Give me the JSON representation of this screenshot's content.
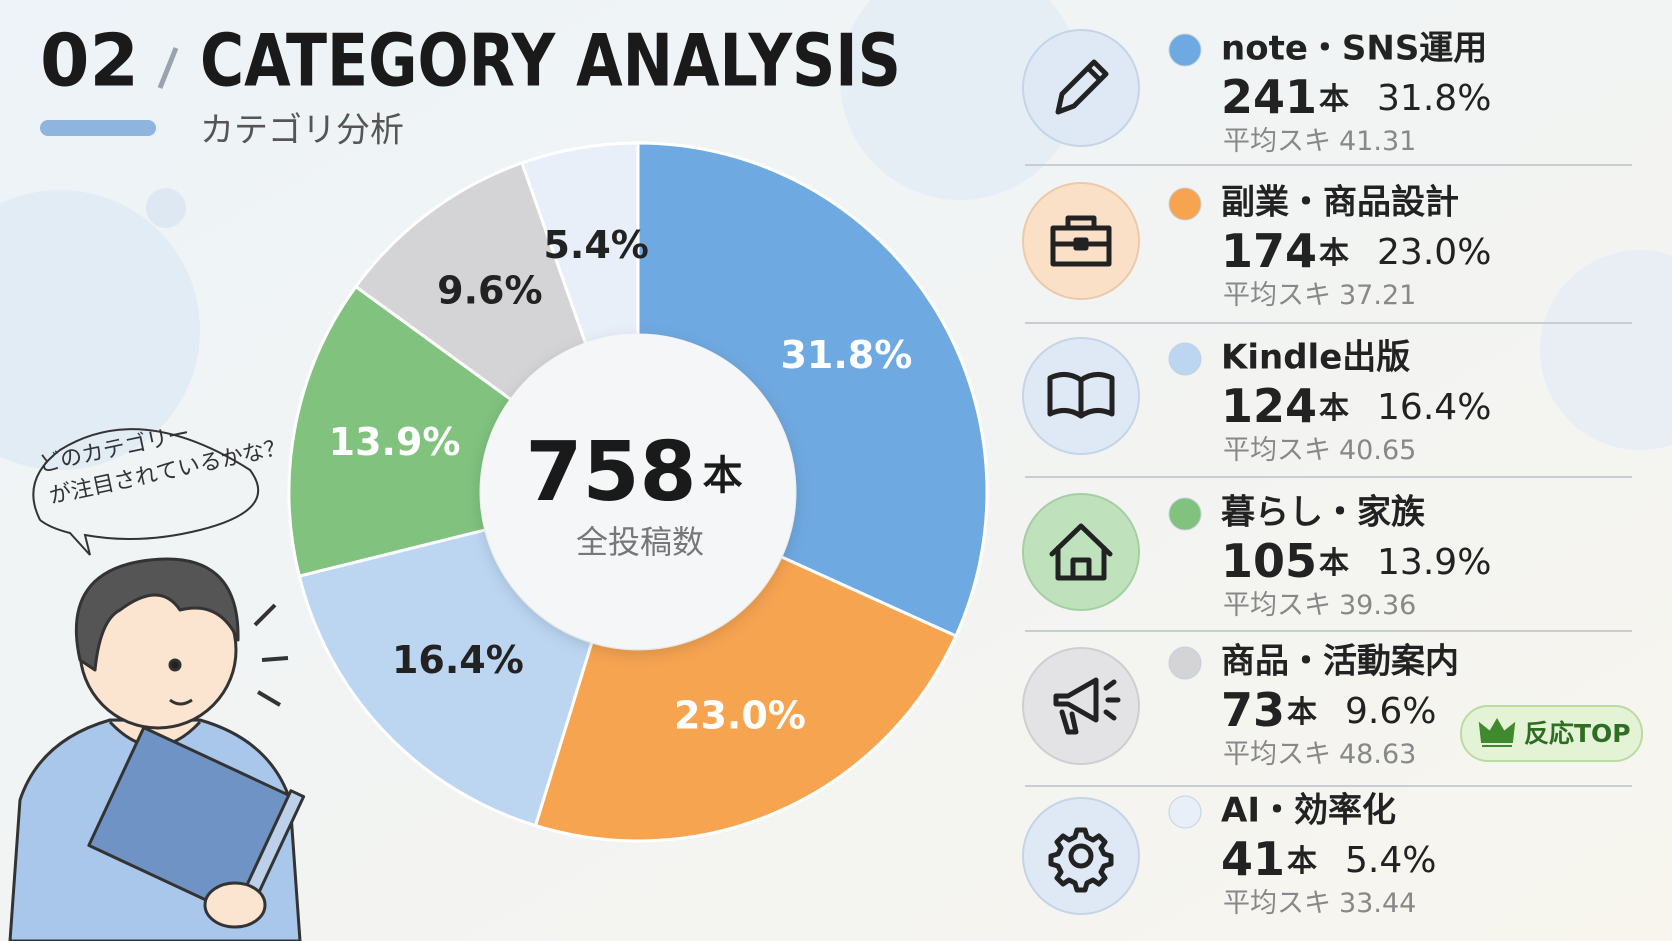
{
  "chart_data": {
    "type": "pie",
    "section": "02",
    "title": "CATEGORY ANALYSIS",
    "subtitle": "カテゴリ分析",
    "categories": [
      "note・SNS運用",
      "副業・商品設計",
      "Kindle出版",
      "暮らし・家族",
      "商品・活動案内",
      "AI・効率化"
    ],
    "values": [
      31.8,
      23.0,
      16.4,
      13.9,
      9.6,
      5.4
    ],
    "value_labels": [
      "31.8%",
      "23.0%",
      "16.4%",
      "13.9%",
      "9.6%",
      "5.4%"
    ],
    "colors": [
      "#6fa9e1",
      "#f7a451",
      "#bcd6f2",
      "#80c27e",
      "#d4d4d6",
      "#e9eff9"
    ],
    "counts": [
      241,
      174,
      124,
      105,
      73,
      41
    ],
    "unit": "本",
    "avg_label": "平均スキ",
    "avg_likes": [
      41.31,
      37.21,
      40.65,
      39.36,
      48.63,
      33.44
    ],
    "total": 758,
    "total_label": "全投稿数",
    "badge_label": "反応TOP",
    "speech": [
      "どのカテゴリー",
      "が注目されているかな？"
    ]
  }
}
